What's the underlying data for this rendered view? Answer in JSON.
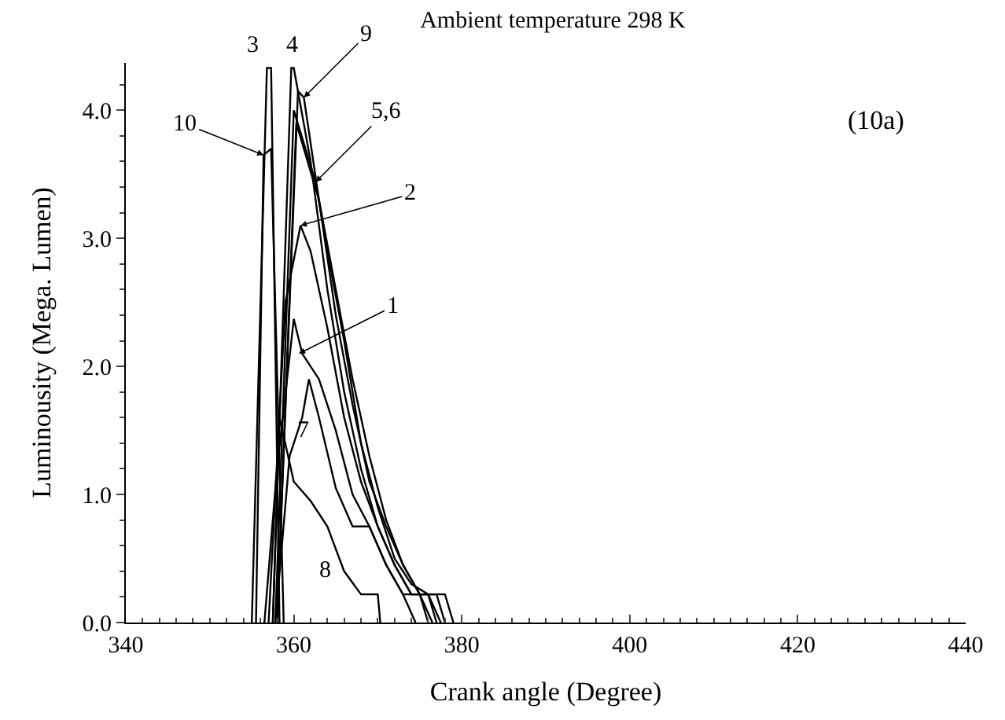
{
  "chart_data": {
    "type": "line",
    "title": "Ambient temperature 298 K",
    "xlabel": "Crank angle (Degree)",
    "ylabel": "Luminousity (Mega. Lumen)",
    "series": [
      {
        "color": "#000000",
        "x": [
          356.5,
          358,
          360,
          361,
          363,
          365,
          367,
          369,
          371,
          373,
          375,
          376
        ],
        "values": [
          0,
          1.2,
          2.37,
          2.1,
          1.9,
          1.5,
          1.0,
          0.75,
          0.45,
          0.22,
          0.22,
          0
        ]
      },
      {
        "color": "#000000",
        "x": [
          357,
          359,
          360.8,
          362,
          364,
          366,
          368,
          370,
          372,
          374,
          376,
          377
        ],
        "values": [
          0,
          2.5,
          3.1,
          2.9,
          2.3,
          1.6,
          1.1,
          0.75,
          0.45,
          0.22,
          0.22,
          0
        ]
      },
      {
        "color": "#000000",
        "x": [
          355,
          356.8,
          357.3,
          358.3
        ],
        "values": [
          0,
          4.33,
          4.33,
          0
        ]
      },
      {
        "color": "#000000",
        "x": [
          357.5,
          359.7,
          360,
          362,
          364,
          366,
          368,
          370,
          372,
          374,
          377,
          378
        ],
        "values": [
          0,
          4.33,
          4.33,
          3.6,
          2.6,
          1.8,
          1.2,
          0.75,
          0.45,
          0.22,
          0.22,
          0
        ]
      },
      {
        "color": "#000000",
        "x": [
          357.8,
          360,
          362.6,
          364,
          366,
          368,
          370,
          372,
          374,
          376,
          377.5
        ],
        "values": [
          0,
          4.0,
          3.44,
          2.9,
          2.2,
          1.4,
          0.9,
          0.5,
          0.3,
          0.22,
          0
        ]
      },
      {
        "color": "#000000",
        "x": [
          358,
          360.3,
          363,
          365,
          367,
          369,
          371,
          373,
          375,
          376.5
        ],
        "values": [
          0,
          3.9,
          3.3,
          2.6,
          1.9,
          1.3,
          0.8,
          0.45,
          0.22,
          0
        ]
      },
      {
        "color": "#000000",
        "x": [
          357.8,
          359.5,
          361,
          361.8,
          363,
          365,
          367,
          369,
          371,
          373,
          374.5
        ],
        "values": [
          0,
          1.3,
          1.6,
          1.9,
          1.6,
          1.05,
          0.75,
          0.75,
          0.45,
          0.22,
          0
        ]
      },
      {
        "color": "#000000",
        "x": [
          357.5,
          358.3,
          360,
          362,
          364,
          366,
          368,
          370,
          370.3
        ],
        "values": [
          0,
          1.6,
          1.1,
          0.95,
          0.75,
          0.4,
          0.22,
          0.22,
          0
        ]
      },
      {
        "color": "#000000",
        "x": [
          358,
          360.5,
          361.2,
          363,
          365,
          367,
          369,
          371,
          373,
          375,
          378,
          379
        ],
        "values": [
          0,
          4.15,
          4.1,
          3.3,
          2.4,
          1.7,
          1.1,
          0.75,
          0.45,
          0.22,
          0.22,
          0
        ]
      },
      {
        "color": "#000000",
        "x": [
          355.5,
          356.4,
          357.3,
          358.8
        ],
        "values": [
          0,
          3.65,
          3.7,
          0
        ]
      }
    ],
    "annotations": [
      {
        "text": "1",
        "x": 360.6,
        "y": 2.1
      },
      {
        "text": "2",
        "x": 360.8,
        "y": 3.1
      },
      {
        "text": "3",
        "x": 357.0,
        "y": 4.33
      },
      {
        "text": "4",
        "x": 359.9,
        "y": 4.33
      },
      {
        "text": "5,6",
        "x": 362.6,
        "y": 3.44
      },
      {
        "text": "7",
        "x": 363,
        "y": 1.6
      },
      {
        "text": "8",
        "x": 366,
        "y": 0.4
      },
      {
        "text": "9",
        "x": 361.2,
        "y": 4.1
      },
      {
        "text": "10",
        "x": 356.4,
        "y": 3.65
      },
      "(10a)"
    ],
    "xlim": [
      340,
      440
    ],
    "xticks": [
      340,
      360,
      380,
      400,
      420,
      440
    ],
    "ylim": [
      0,
      4.37
    ],
    "yticks": [
      {
        "value": 0,
        "label": "0.0"
      },
      {
        "value": 1,
        "label": "1.0"
      },
      {
        "value": 2,
        "label": "2.0"
      },
      {
        "value": 3,
        "label": "3.0"
      },
      {
        "value": 4,
        "label": "4.0"
      }
    ],
    "marker": "none",
    "line_style": "solid"
  }
}
